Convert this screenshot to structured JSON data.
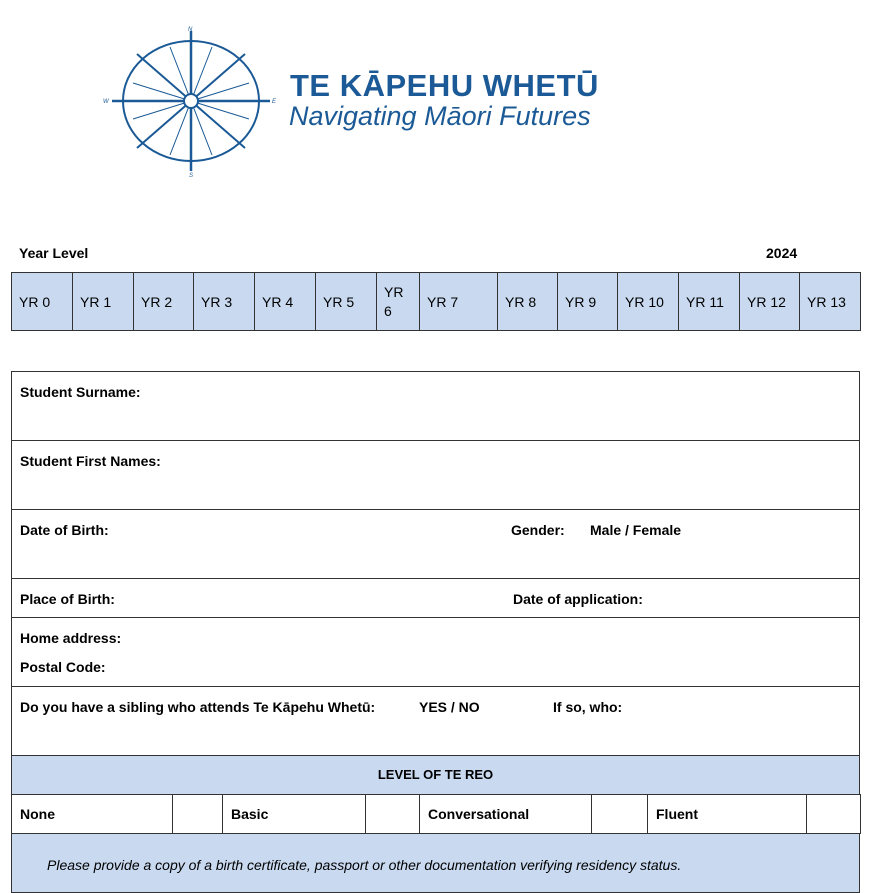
{
  "logo": {
    "title": "TE KĀPEHU WHETŪ",
    "subtitle": "Navigating Māori Futures",
    "compass": {
      "n": "N",
      "s": "S",
      "e": "E",
      "w": "W"
    },
    "color": "#1b5a96"
  },
  "year_level": {
    "label": "Year Level",
    "year": "2024",
    "levels": [
      "YR 0",
      "YR 1",
      "YR 2",
      "YR 3",
      "YR 4",
      "YR 5",
      "YR 6",
      "YR 7",
      "YR 8",
      "YR 9",
      "YR 10",
      "YR  11",
      "YR 12",
      "YR 13"
    ]
  },
  "form": {
    "surname": "Student Surname:",
    "first_names": "Student First Names:",
    "dob": "Date of Birth:",
    "gender_label": "Gender:",
    "gender_options": "Male / Female",
    "place_of_birth": "Place of Birth:",
    "date_of_application": "Date of application:",
    "home_address": "Home address:",
    "postal_code": "Postal Code:",
    "sibling_question": "Do you have a sibling who attends Te Kāpehu Whetū:",
    "sibling_options": "YES / NO",
    "sibling_who": "If so, who:",
    "te_reo_heading": "LEVEL OF TE REO",
    "te_reo_levels": [
      "None",
      "Basic",
      "Conversational",
      "Fluent"
    ],
    "note": "Please provide a copy of a birth certificate, passport or other documentation verifying residency status."
  },
  "colors": {
    "header_fill": "#c8d9f0"
  }
}
